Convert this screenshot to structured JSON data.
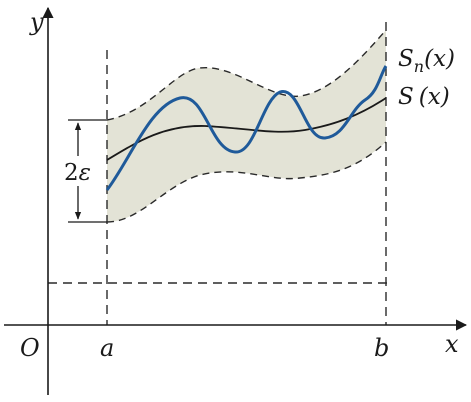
{
  "labels": {
    "y_axis": "y",
    "x_axis": "x",
    "origin": "O",
    "a": "a",
    "b": "b",
    "band_width_coef": "2",
    "band_width_var": "ε",
    "sn_main": "S",
    "sn_sub": "n",
    "sn_arg": "(x)",
    "s_main": "S",
    "s_arg": "(x)"
  },
  "colors": {
    "axis": "#1a1a1a",
    "band_fill": "#e3e3d6",
    "band_edge": "#2a2a2a",
    "s_curve": "#1a1a1a",
    "sn_curve": "#1f5a9a",
    "dash": "#2a2a2a"
  }
}
